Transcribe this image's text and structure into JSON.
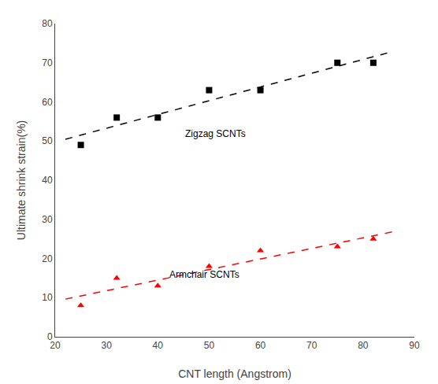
{
  "chart_data": {
    "type": "scatter",
    "x_label": "CNT length (Angstrom)",
    "y_label": "Ultimate shrink strain(%)",
    "xlim": [
      20,
      90
    ],
    "ylim": [
      0,
      80
    ],
    "xticks": [
      20,
      30,
      40,
      50,
      60,
      70,
      80,
      90
    ],
    "yticks": [
      0,
      10,
      20,
      30,
      40,
      50,
      60,
      70,
      80
    ],
    "grid": false,
    "series": [
      {
        "type": "scatter",
        "color": "black",
        "marker": "square",
        "x": [
          25,
          32,
          40,
          50,
          60,
          75,
          82
        ],
        "values": [
          49,
          56,
          56,
          63,
          63,
          70,
          70
        ]
      },
      {
        "type": "line",
        "color": "black",
        "line_style": "dashed",
        "x": [
          22,
          86
        ],
        "values": [
          50.4621,
          72.943
        ]
      },
      {
        "type": "scatter",
        "color": "red",
        "marker": "triangle",
        "x": [
          25,
          32,
          40,
          50,
          60,
          75,
          82
        ],
        "values": [
          8,
          15,
          13,
          18,
          22,
          23,
          25
        ]
      },
      {
        "type": "line",
        "color": "red",
        "line_style": "dashed",
        "x": [
          22,
          86
        ],
        "values": [
          9.624,
          26.8832
        ]
      }
    ],
    "annotations": [
      {
        "text": "Zigzag SCNTs",
        "x": 45,
        "y": 50
      },
      {
        "text": "Armchair SCNTs",
        "x": 42,
        "y": 14
      }
    ]
  }
}
